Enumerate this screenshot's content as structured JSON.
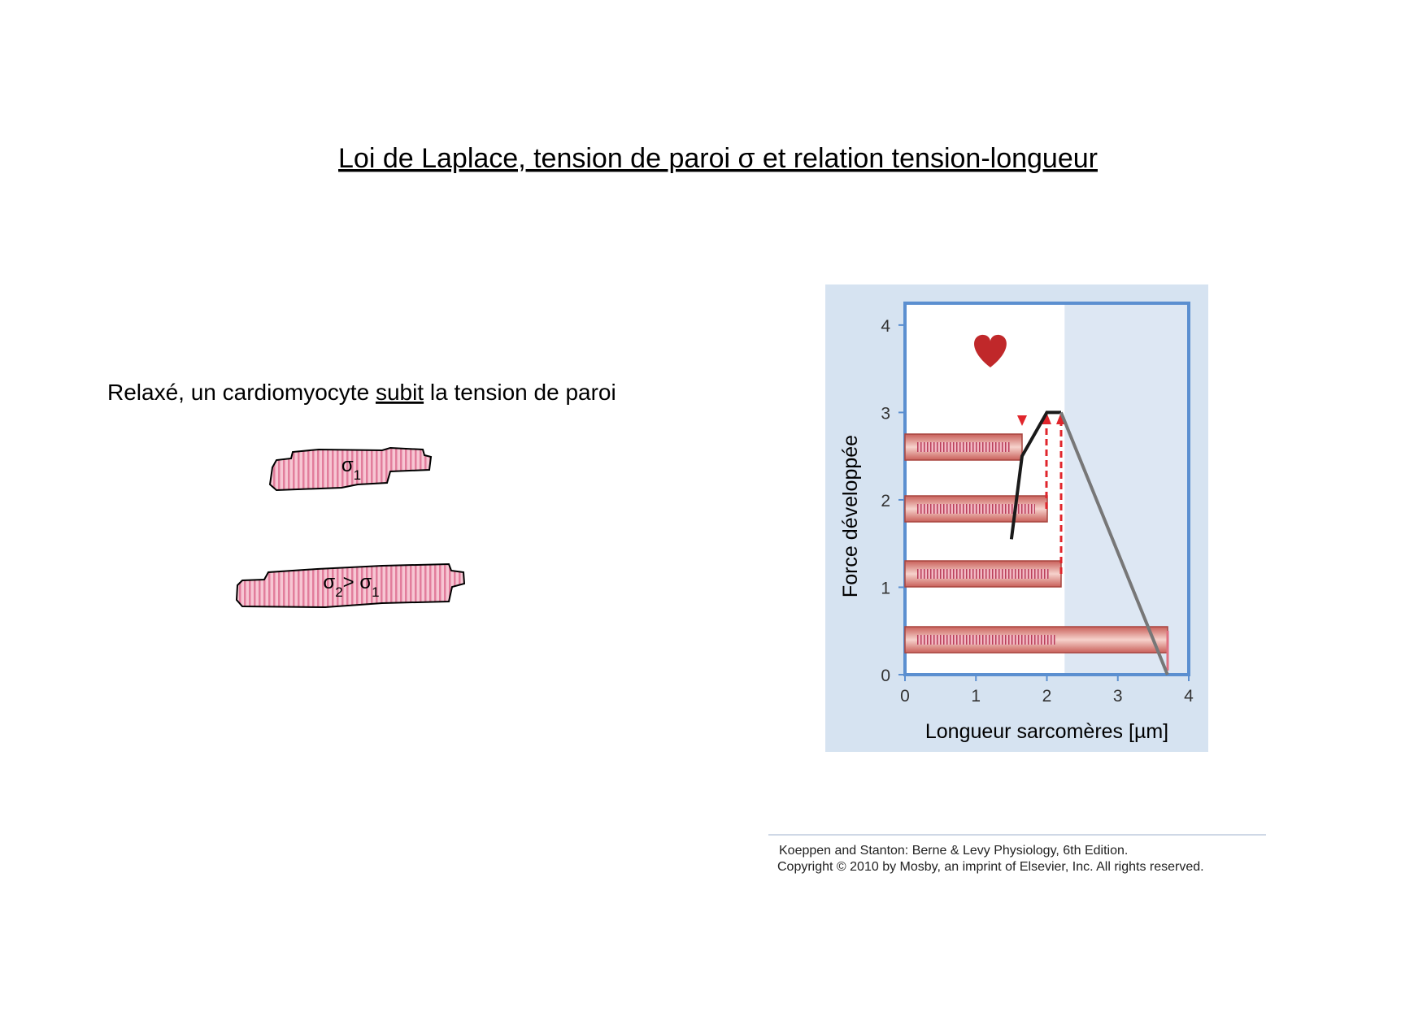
{
  "header": {
    "title": "Loi de Laplace, tension de paroi σ et relation tension-longueur"
  },
  "body": {
    "text_before": "Relaxé, un cardiomyocyte ",
    "text_underlined": "subit",
    "text_after": " la tension de paroi"
  },
  "cells": [
    {
      "parts": [
        {
          "text": "σ"
        },
        {
          "text": "1",
          "sub": true
        }
      ]
    },
    {
      "parts": [
        {
          "text": "σ"
        },
        {
          "text": "2",
          "sub": true
        },
        {
          "text": "> σ"
        },
        {
          "text": "1",
          "sub": true
        }
      ]
    }
  ],
  "chart_data": {
    "type": "line",
    "x_label": "Longueur sarcomères [µm]",
    "y_label": "Force développée",
    "xlim": [
      0,
      4
    ],
    "ylim": [
      0,
      4.25
    ],
    "xticks": [
      0,
      1,
      2,
      3,
      4
    ],
    "yticks": [
      0,
      1,
      2,
      3,
      4
    ],
    "shaded_xrange": [
      2.25,
      4
    ],
    "series": [
      {
        "color": "#1a1a1a",
        "x": [
          1.5,
          1.65,
          2.0,
          2.2
        ],
        "values": [
          1.55,
          2.5,
          3.0,
          3.0
        ]
      },
      {
        "color": "#777777",
        "x": [
          2.2,
          3.7
        ],
        "values": [
          3.0,
          0
        ]
      }
    ]
  },
  "citation": {
    "line1": "Koeppen and Stanton: Berne & Levy Physiology, 6th Edition.",
    "line2": "Copyright © 2010 by Mosby, an imprint of Elsevier, Inc. All rights reserved."
  }
}
